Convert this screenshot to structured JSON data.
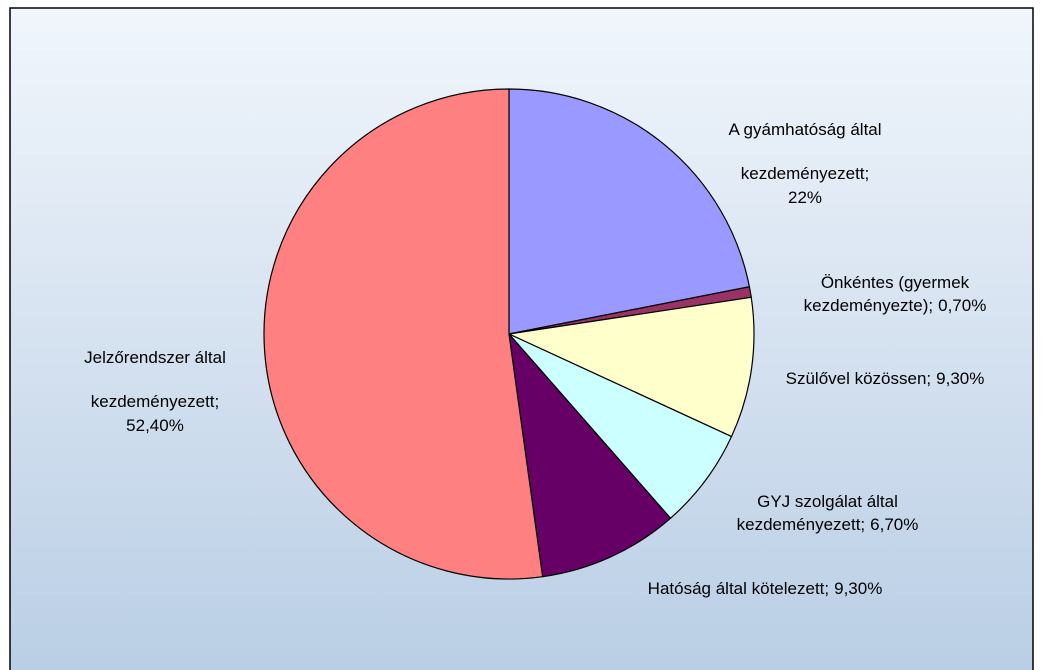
{
  "chart_data": {
    "type": "pie",
    "categories": [
      "A gyámhatóság által kezdeményezett;",
      "Önkéntes (gyermek kezdeményezte);",
      "Szülővel közössen;",
      "GYJ szolgálat által kezdeményezett;",
      "Hatóság által kötelezett;",
      "Jelzőrendszer által kezdeményezett;"
    ],
    "values": [
      22,
      0.7,
      9.3,
      6.7,
      9.3,
      52.4
    ],
    "value_labels": [
      "22%",
      "0,70%",
      "9,30%",
      "6,70%",
      "9,30%",
      "52,40%"
    ],
    "colors": [
      "#9999ff",
      "#993366",
      "#ffffcc",
      "#ccffff",
      "#660066",
      "#ff8080"
    ]
  }
}
